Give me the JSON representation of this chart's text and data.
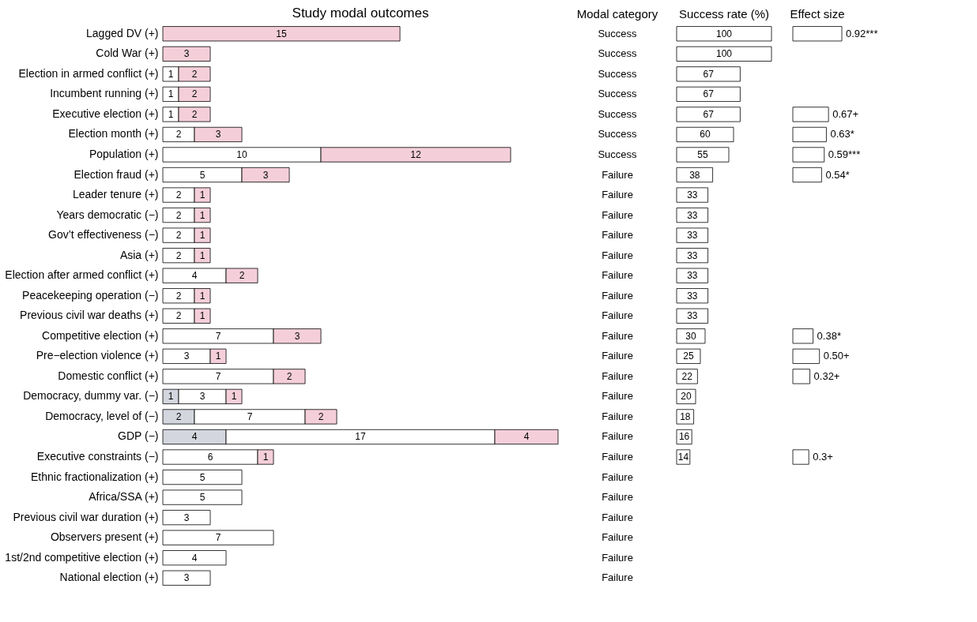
{
  "chart_data": [
    {
      "type": "bar",
      "orientation": "horizontal",
      "stacked": true,
      "title": "Study modal outcomes",
      "data_labels": true,
      "grid": false,
      "tick_labels": "y",
      "categories": [
        "Lagged DV (+)",
        "Cold War (+)",
        "Election in armed conflict (+)",
        "Incumbent running (+)",
        "Executive election (+)",
        "Election month (+)",
        "Population (+)",
        "Election fraud (+)",
        "Leader tenure (+)",
        "Years democratic (−)",
        "Gov’t effectiveness (−)",
        "Asia (+)",
        "Election after armed conflict (+)",
        "Peacekeeping operation (−)",
        "Previous civil war deaths (+)",
        "Competitive election (+)",
        "Pre−election violence (+)",
        "Domestic conflict (+)",
        "Democracy, dummy var. (−)",
        "Democracy, level of (−)",
        "GDP (−)",
        "Executive constraints (−)",
        "Ethnic fractionalization (+)",
        "Africa/SSA (+)",
        "Previous civil war duration (+)",
        "Observers present (+)",
        "1st/2nd competitive election (+)",
        "National election (+)"
      ],
      "series": [
        {
          "color": "#d3d6de",
          "values": [
            null,
            null,
            null,
            null,
            null,
            null,
            null,
            null,
            null,
            null,
            null,
            null,
            null,
            null,
            null,
            null,
            null,
            null,
            1,
            2,
            4,
            null,
            null,
            null,
            null,
            null,
            null,
            null
          ]
        },
        {
          "color": "#ffffff",
          "values": [
            null,
            null,
            1,
            1,
            1,
            2,
            10,
            5,
            2,
            2,
            2,
            2,
            4,
            2,
            2,
            7,
            3,
            7,
            3,
            7,
            17,
            6,
            5,
            5,
            3,
            7,
            4,
            3
          ]
        },
        {
          "color": "#f4cfd9",
          "values": [
            15,
            3,
            2,
            2,
            2,
            3,
            12,
            3,
            1,
            1,
            1,
            1,
            2,
            1,
            1,
            3,
            1,
            2,
            1,
            2,
            4,
            1,
            null,
            null,
            null,
            null,
            null,
            null
          ]
        }
      ]
    },
    {
      "type": "other",
      "title": "Modal category",
      "categories": [
        "Success",
        "Success",
        "Success",
        "Success",
        "Success",
        "Success",
        "Success",
        "Failure",
        "Failure",
        "Failure",
        "Failure",
        "Failure",
        "Failure",
        "Failure",
        "Failure",
        "Failure",
        "Failure",
        "Failure",
        "Failure",
        "Failure",
        "Failure",
        "Failure",
        "Failure",
        "Failure",
        "Failure",
        "Failure",
        "Failure",
        "Failure"
      ]
    },
    {
      "type": "bar",
      "orientation": "horizontal",
      "title": "Success rate (%)",
      "data_labels": true,
      "tick_labels": false,
      "color": "#ffffff",
      "categories": [
        null,
        null,
        null,
        null,
        null,
        null,
        null,
        null,
        null,
        null,
        null,
        null,
        null,
        null,
        null,
        null,
        null,
        null,
        null,
        null,
        null,
        null,
        null,
        null,
        null,
        null,
        null,
        null
      ],
      "values": [
        100,
        100,
        67,
        67,
        67,
        60,
        55,
        38,
        33,
        33,
        33,
        33,
        33,
        33,
        33,
        30,
        25,
        22,
        20,
        18,
        16,
        14,
        null,
        null,
        null,
        null,
        null,
        null
      ]
    },
    {
      "type": "bar",
      "orientation": "horizontal",
      "title": "Effect size",
      "tick_labels": false,
      "color": "#ffffff",
      "categories": [
        null,
        null,
        null,
        null,
        null,
        null,
        null,
        null,
        null,
        null,
        null,
        null,
        null,
        null,
        null,
        null,
        null,
        null,
        null,
        null,
        null,
        null,
        null,
        null,
        null,
        null,
        null,
        null
      ],
      "values": [
        0.92,
        null,
        null,
        null,
        0.67,
        0.63,
        0.59,
        0.54,
        null,
        null,
        null,
        null,
        null,
        null,
        null,
        0.38,
        0.5,
        0.32,
        null,
        null,
        null,
        0.3,
        null,
        null,
        null,
        null,
        null,
        null
      ],
      "value_labels": [
        "0.92***",
        null,
        null,
        null,
        "0.67+",
        "0.63*",
        "0.59***",
        "0.54*",
        null,
        null,
        null,
        null,
        null,
        null,
        null,
        "0.38*",
        "0.50+",
        "0.32+",
        null,
        null,
        null,
        "0.3+",
        null,
        null,
        null,
        null,
        null,
        null
      ]
    }
  ]
}
